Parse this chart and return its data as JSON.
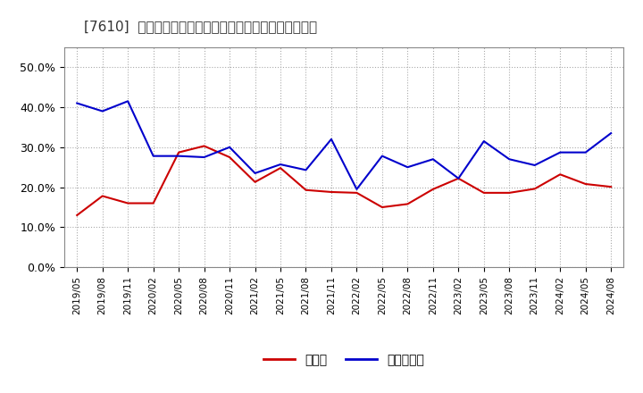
{
  "title": "[7610]  現須金、有利子負債の総資産に対する比率の推移",
  "x_labels": [
    "2019/05",
    "2019/08",
    "2019/11",
    "2020/02",
    "2020/05",
    "2020/08",
    "2020/11",
    "2021/02",
    "2021/05",
    "2021/08",
    "2021/11",
    "2022/02",
    "2022/05",
    "2022/08",
    "2022/11",
    "2023/02",
    "2023/05",
    "2023/08",
    "2023/11",
    "2024/02",
    "2024/05",
    "2024/08"
  ],
  "cash": [
    0.13,
    0.178,
    0.16,
    0.16,
    0.287,
    0.303,
    0.275,
    0.213,
    0.248,
    0.193,
    0.188,
    0.186,
    0.15,
    0.158,
    0.195,
    0.222,
    0.186,
    0.186,
    0.196,
    0.232,
    0.208,
    0.201
  ],
  "debt": [
    0.41,
    0.39,
    0.415,
    0.278,
    0.278,
    0.275,
    0.3,
    0.235,
    0.257,
    0.243,
    0.32,
    0.195,
    0.278,
    0.25,
    0.27,
    0.222,
    0.315,
    0.27,
    0.255,
    0.287,
    0.287,
    0.335
  ],
  "cash_color": "#cc0000",
  "debt_color": "#0000cc",
  "ylim": [
    0.0,
    0.55
  ],
  "yticks": [
    0.0,
    0.1,
    0.2,
    0.3,
    0.4,
    0.5
  ],
  "legend_cash": "現須金",
  "legend_debt": "有利子負債",
  "background_color": "#ffffff",
  "grid_color": "#aaaaaa",
  "title_fontsize": 11,
  "tick_fontsize": 7.5,
  "legend_fontsize": 10
}
